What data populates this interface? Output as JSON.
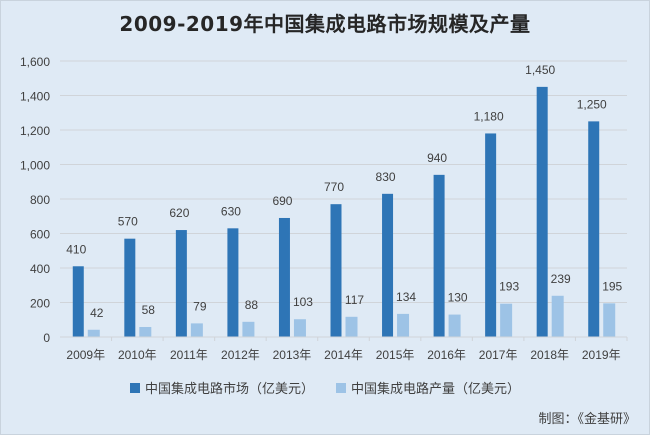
{
  "chart_data": {
    "type": "bar",
    "title": "2009-2019年中国集成电路市场规模及产量",
    "categories": [
      "2009年",
      "2010年",
      "2011年",
      "2012年",
      "2013年",
      "2014年",
      "2015年",
      "2016年",
      "2017年",
      "2018年",
      "2019年"
    ],
    "series": [
      {
        "name": "中国集成电路市场（亿美元）",
        "color": "#2e75b6",
        "values": [
          410,
          570,
          620,
          630,
          690,
          770,
          830,
          940,
          1180,
          1450,
          1250
        ],
        "labels": [
          "410",
          "570",
          "620",
          "630",
          "690",
          "770",
          "830",
          "940",
          "1,180",
          "1,450",
          "1,250"
        ]
      },
      {
        "name": "中国集成电路产量（亿美元）",
        "color": "#9dc3e6",
        "values": [
          42,
          58,
          79,
          88,
          103,
          117,
          134,
          130,
          193,
          239,
          195
        ],
        "labels": [
          "42",
          "58",
          "79",
          "88",
          "103",
          "117",
          "134",
          "130",
          "193",
          "239",
          "195"
        ]
      }
    ],
    "xlabel": "",
    "ylabel": "",
    "ylim": [
      0,
      1600
    ],
    "yticks": [
      0,
      200,
      400,
      600,
      800,
      1000,
      1200,
      1400,
      1600
    ],
    "ytick_labels": [
      "0",
      "200",
      "400",
      "600",
      "800",
      "1,000",
      "1,200",
      "1,400",
      "1,600"
    ],
    "grid": true,
    "legend_position": "bottom"
  },
  "credit": "制图：《金基研》"
}
